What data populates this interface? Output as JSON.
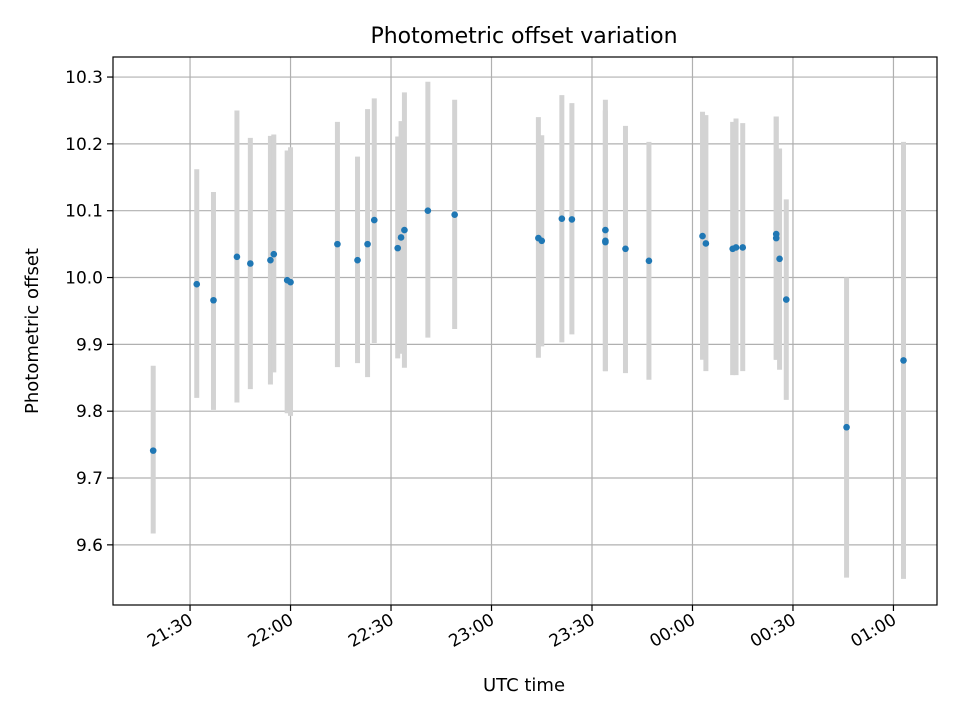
{
  "chart_data": {
    "type": "scatter",
    "title": "Photometric offset variation",
    "xlabel": "UTC time",
    "ylabel": "Photometric offset",
    "x_ticks": [
      "21:30",
      "22:00",
      "22:30",
      "23:00",
      "23:30",
      "00:00",
      "00:30",
      "01:00"
    ],
    "y_ticks": [
      "9.6",
      "9.7",
      "9.8",
      "9.9",
      "10.0",
      "10.1",
      "10.2",
      "10.3"
    ],
    "xlim": [
      "21:07",
      "01:13"
    ],
    "ylim": [
      9.51,
      10.33
    ],
    "grid": true,
    "colors": {
      "points": "#1f77b4",
      "error_bars": "#d3d3d3",
      "grid": "#b0b0b0"
    },
    "points": [
      {
        "x": "21:19",
        "y": 9.741,
        "ylow": 9.617,
        "yhigh": 9.868
      },
      {
        "x": "21:32",
        "y": 9.99,
        "ylow": 9.82,
        "yhigh": 10.162
      },
      {
        "x": "21:37",
        "y": 9.966,
        "ylow": 9.802,
        "yhigh": 10.128
      },
      {
        "x": "21:44",
        "y": 10.031,
        "ylow": 9.813,
        "yhigh": 10.25
      },
      {
        "x": "21:48",
        "y": 10.021,
        "ylow": 9.833,
        "yhigh": 10.209
      },
      {
        "x": "21:54",
        "y": 10.026,
        "ylow": 9.84,
        "yhigh": 10.212
      },
      {
        "x": "21:55",
        "y": 10.035,
        "ylow": 9.858,
        "yhigh": 10.214
      },
      {
        "x": "21:59",
        "y": 9.996,
        "ylow": 9.797,
        "yhigh": 10.19
      },
      {
        "x": "22:00",
        "y": 9.993,
        "ylow": 9.793,
        "yhigh": 10.195
      },
      {
        "x": "22:14",
        "y": 10.05,
        "ylow": 9.866,
        "yhigh": 10.233
      },
      {
        "x": "22:20",
        "y": 10.026,
        "ylow": 9.872,
        "yhigh": 10.181
      },
      {
        "x": "22:23",
        "y": 10.05,
        "ylow": 9.851,
        "yhigh": 10.252
      },
      {
        "x": "22:25",
        "y": 10.086,
        "ylow": 9.902,
        "yhigh": 10.268
      },
      {
        "x": "22:32",
        "y": 10.044,
        "ylow": 9.879,
        "yhigh": 10.211
      },
      {
        "x": "22:33",
        "y": 10.06,
        "ylow": 9.886,
        "yhigh": 10.234
      },
      {
        "x": "22:34",
        "y": 10.071,
        "ylow": 9.865,
        "yhigh": 10.277
      },
      {
        "x": "22:41",
        "y": 10.1,
        "ylow": 9.91,
        "yhigh": 10.293
      },
      {
        "x": "22:49",
        "y": 10.094,
        "ylow": 9.923,
        "yhigh": 10.266
      },
      {
        "x": "23:14",
        "y": 10.059,
        "ylow": 9.88,
        "yhigh": 10.24
      },
      {
        "x": "23:15",
        "y": 10.055,
        "ylow": 9.897,
        "yhigh": 10.213
      },
      {
        "x": "23:21",
        "y": 10.088,
        "ylow": 9.903,
        "yhigh": 10.273
      },
      {
        "x": "23:24",
        "y": 10.087,
        "ylow": 9.915,
        "yhigh": 10.261
      },
      {
        "x": "23:34",
        "y": 10.071,
        "ylow": 9.86,
        "yhigh": 10.266
      },
      {
        "x": "23:34",
        "y": 10.053,
        "ylow": 9.86,
        "yhigh": 10.25
      },
      {
        "x": "23:34",
        "y": 10.055,
        "ylow": 9.86,
        "yhigh": 10.25
      },
      {
        "x": "23:40",
        "y": 10.043,
        "ylow": 9.857,
        "yhigh": 10.227
      },
      {
        "x": "23:47",
        "y": 10.025,
        "ylow": 9.847,
        "yhigh": 10.203
      },
      {
        "x": "00:03",
        "y": 10.062,
        "ylow": 9.877,
        "yhigh": 10.248
      },
      {
        "x": "00:04",
        "y": 10.051,
        "ylow": 9.86,
        "yhigh": 10.243
      },
      {
        "x": "00:12",
        "y": 10.043,
        "ylow": 9.854,
        "yhigh": 10.233
      },
      {
        "x": "00:13",
        "y": 10.045,
        "ylow": 9.854,
        "yhigh": 10.238
      },
      {
        "x": "00:15",
        "y": 10.045,
        "ylow": 9.86,
        "yhigh": 10.231
      },
      {
        "x": "00:25",
        "y": 10.059,
        "ylow": 9.877,
        "yhigh": 10.241
      },
      {
        "x": "00:25",
        "y": 10.065,
        "ylow": 9.877,
        "yhigh": 10.241
      },
      {
        "x": "00:26",
        "y": 10.028,
        "ylow": 9.862,
        "yhigh": 10.193
      },
      {
        "x": "00:28",
        "y": 9.967,
        "ylow": 9.817,
        "yhigh": 10.117
      },
      {
        "x": "00:46",
        "y": 9.776,
        "ylow": 9.551,
        "yhigh": 10.0
      },
      {
        "x": "01:03",
        "y": 9.876,
        "ylow": 9.549,
        "yhigh": 10.203
      }
    ]
  }
}
